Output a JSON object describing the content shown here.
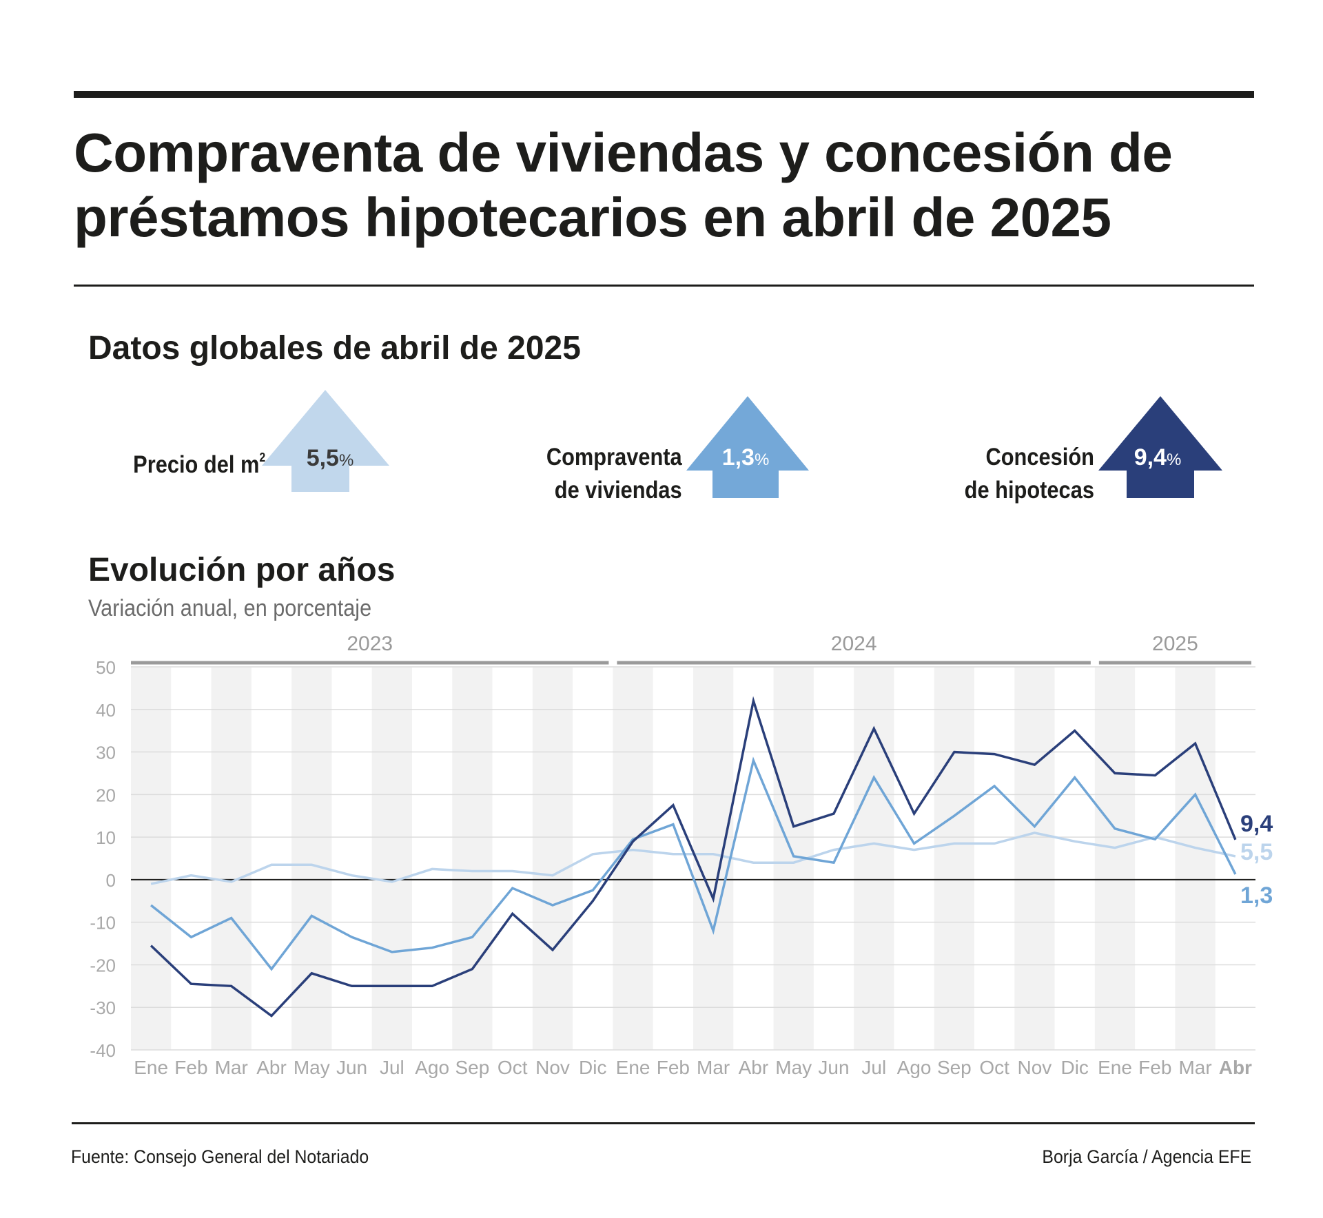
{
  "header": {
    "title": "Compraventa de viviendas y concesión de préstamos hipotecarios en abril de 2025",
    "title_line1": "Compraventa de viviendas y concesión de",
    "title_line2": "préstamos hipotecarios en abril de 2025"
  },
  "global": {
    "heading": "Datos globales de abril de 2025",
    "kpis": [
      {
        "label_line1": "Precio del m",
        "label_sup": "2",
        "label_line2": "",
        "value": "5,5",
        "unit": "%",
        "color": "#c1d7ec",
        "text_color": "#3a3a3a"
      },
      {
        "label_line1": "Compraventa",
        "label_line2": "de viviendas",
        "value": "1,3",
        "unit": "%",
        "color": "#74a8d8",
        "text_color": "#ffffff"
      },
      {
        "label_line1": "Concesión",
        "label_line2": "de hipotecas",
        "value": "9,4",
        "unit": "%",
        "color": "#2a3f7a",
        "text_color": "#ffffff"
      }
    ]
  },
  "evolution": {
    "heading": "Evolución por años",
    "subheading": "Variación anual, en porcentaje"
  },
  "chart_data": {
    "type": "line",
    "title": "Evolución por años",
    "subtitle": "Variación anual, en porcentaje",
    "xlabel": "",
    "ylabel": "",
    "ylim": [
      -40,
      50
    ],
    "yticks": [
      50,
      40,
      30,
      20,
      10,
      0,
      -10,
      -20,
      -30,
      -40
    ],
    "categories": [
      "Ene",
      "Feb",
      "Mar",
      "Abr",
      "May",
      "Jun",
      "Jul",
      "Ago",
      "Sep",
      "Oct",
      "Nov",
      "Dic",
      "Ene",
      "Feb",
      "Mar",
      "Abr",
      "May",
      "Jun",
      "Jul",
      "Ago",
      "Sep",
      "Oct",
      "Nov",
      "Dic",
      "Ene",
      "Feb",
      "Mar",
      "Abr"
    ],
    "highlight_category_index": 27,
    "year_groups": [
      {
        "label": "2023",
        "start": 0,
        "end": 11
      },
      {
        "label": "2024",
        "start": 12,
        "end": 23
      },
      {
        "label": "2025",
        "start": 24,
        "end": 27
      }
    ],
    "series": [
      {
        "name": "Precio del m2",
        "color": "#bcd4ec",
        "end_label": "5,5",
        "values": [
          -1,
          1,
          -0.5,
          3.5,
          3.5,
          1,
          -0.5,
          2.5,
          2,
          2,
          1,
          6,
          7,
          6,
          6,
          4,
          4,
          7,
          8.5,
          7,
          8.5,
          8.5,
          11,
          9,
          7.5,
          10,
          7.5,
          5.5
        ]
      },
      {
        "name": "Compraventa de viviendas",
        "color": "#6fa5d6",
        "end_label": "1,3",
        "values": [
          -6,
          -13.5,
          -9,
          -21,
          -8.5,
          -13.5,
          -17,
          -16,
          -13.5,
          -2,
          -6,
          -2.5,
          9.5,
          13,
          -12,
          28,
          5.5,
          4,
          24,
          8.5,
          15,
          22,
          12.5,
          24,
          12,
          9.5,
          20,
          1.3
        ]
      },
      {
        "name": "Concesión de hipotecas",
        "color": "#2a3f7a",
        "end_label": "9,4",
        "values": [
          -15.5,
          -24.5,
          -25,
          -32,
          -22,
          -25,
          -25,
          -25,
          -21,
          -8,
          -16.5,
          -5,
          9,
          17.5,
          -4.5,
          42,
          12.5,
          15.5,
          35.5,
          15.5,
          30,
          29.5,
          27,
          35,
          25,
          24.5,
          32,
          9.4
        ]
      }
    ]
  },
  "footer": {
    "source": "Fuente: Consejo General del Notariado",
    "credit": "Borja García / Agencia EFE"
  }
}
